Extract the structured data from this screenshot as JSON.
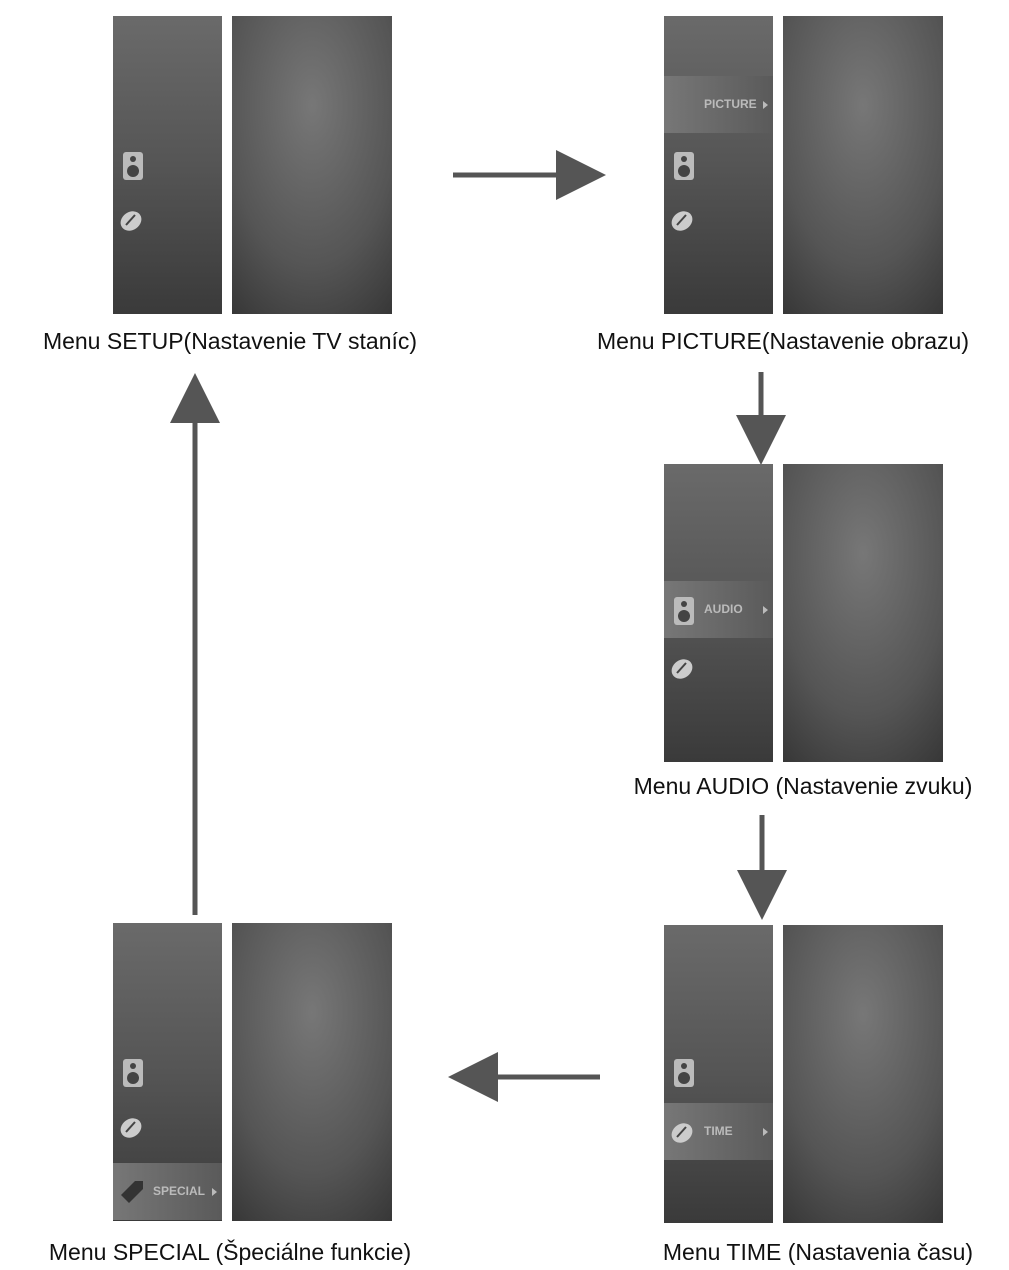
{
  "screens": [
    {
      "caption": "Menu SETUP(Nastavenie TV staníc)"
    },
    {
      "caption": "Menu PICTURE(Nastavenie obrazu)",
      "highlight": "PICTURE"
    },
    {
      "caption": "Menu AUDIO (Nastavenie zvuku)",
      "highlight": "AUDIO"
    },
    {
      "caption": "Menu TIME (Nastavenia času)",
      "highlight": "TIME"
    },
    {
      "caption": "Menu SPECIAL (Špeciálne funkcie)",
      "highlight": "SPECIAL"
    }
  ]
}
